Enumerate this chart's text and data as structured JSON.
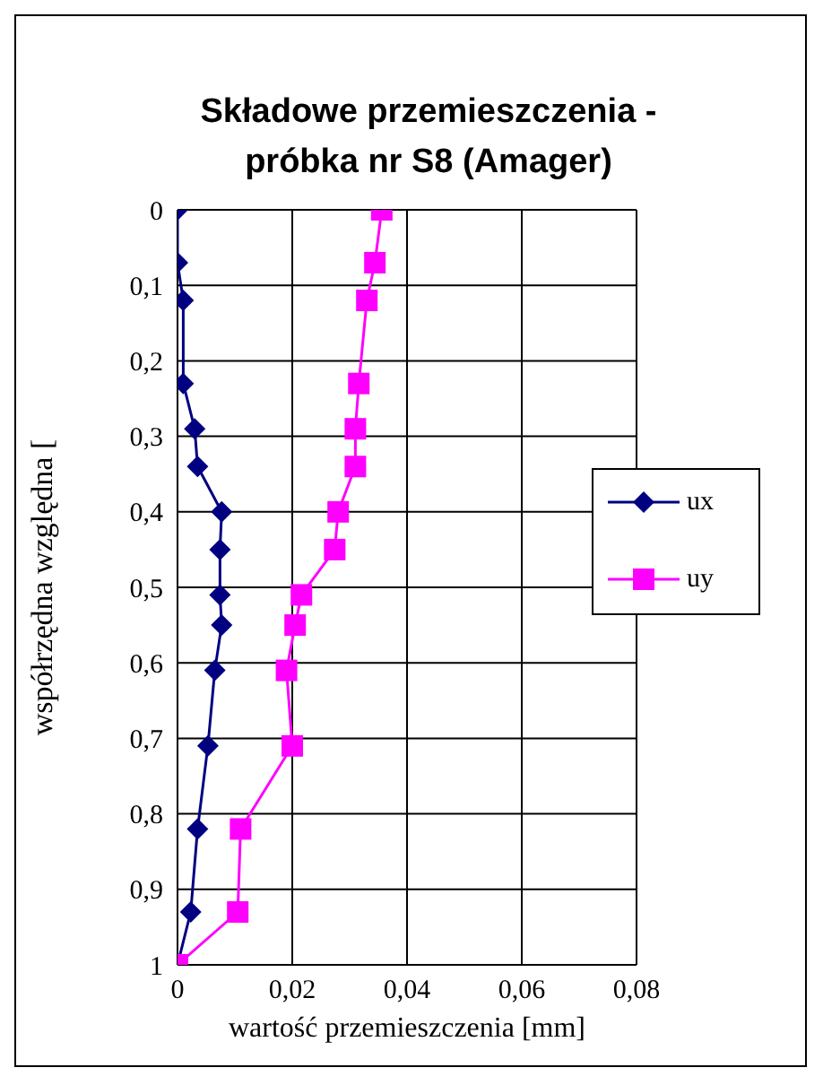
{
  "chart_data": {
    "type": "line",
    "orientation": "horizontal",
    "title": "Składowe przemieszczenia - próbka nr S8 (Amager)",
    "xlabel": "wartość przemieszczenia [mm]",
    "ylabel": "współrzędna względna [",
    "x": [
      0,
      0.07,
      0.12,
      0.23,
      0.29,
      0.34,
      0.4,
      0.45,
      0.51,
      0.55,
      0.61,
      0.71,
      0.82,
      0.93,
      1
    ],
    "series": [
      {
        "name": "ux",
        "color": "#000080",
        "marker": "diamond",
        "values": [
          0,
          0,
          0.001,
          0.001,
          0.003,
          0.0035,
          0.0077,
          0.0074,
          0.0074,
          0.0077,
          0.0065,
          0.0053,
          0.0035,
          0.0023,
          0
        ]
      },
      {
        "name": "uy",
        "color": "#ff00ff",
        "marker": "square",
        "values": [
          0.0356,
          0.0344,
          0.033,
          0.0316,
          0.031,
          0.031,
          0.028,
          0.0274,
          0.0216,
          0.0205,
          0.019,
          0.02,
          0.011,
          0.0105,
          0
        ]
      }
    ],
    "xlim": [
      0,
      0.08
    ],
    "xticks": [
      0,
      {
        "value": 0.02,
        "label": "0,02"
      },
      {
        "value": 0.04,
        "label": "0,04"
      },
      {
        "value": 0.06,
        "label": "0,06"
      },
      {
        "value": 0.08,
        "label": "0,08"
      }
    ],
    "ylim": [
      1,
      0
    ],
    "yticks": [
      0,
      {
        "value": 0.1,
        "label": "0,1"
      },
      {
        "value": 0.2,
        "label": "0,2"
      },
      {
        "value": 0.3,
        "label": "0,3"
      },
      {
        "value": 0.4,
        "label": "0,4"
      },
      {
        "value": 0.5,
        "label": "0,5"
      },
      {
        "value": 0.6,
        "label": "0,6"
      },
      {
        "value": 0.7,
        "label": "0,7"
      },
      {
        "value": 0.8,
        "label": "0,8"
      },
      {
        "value": 0.9,
        "label": "0,9"
      },
      1
    ],
    "grid": true,
    "legend": "right",
    "line_style": "solid"
  }
}
